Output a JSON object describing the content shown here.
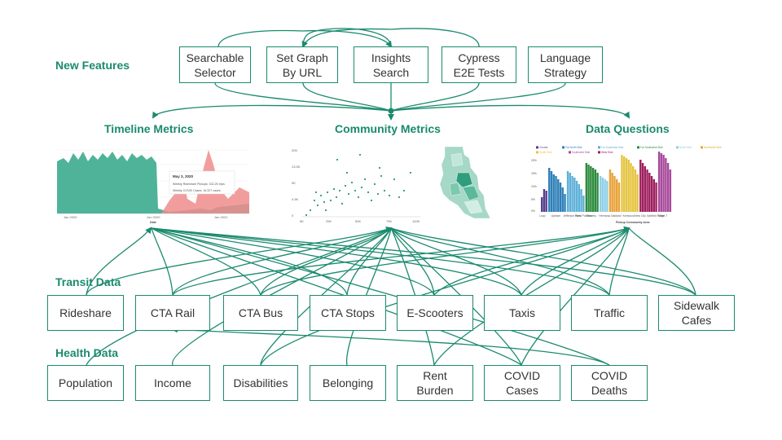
{
  "sections": {
    "new_features": "New Features",
    "transit_data": "Transit Data",
    "health_data": "Health Data"
  },
  "features": [
    "Searchable\nSelector",
    "Set Graph\nBy URL",
    "Insights\nSearch",
    "Cypress\nE2E Tests",
    "Language\nStrategy"
  ],
  "metrics": [
    "Timeline Metrics",
    "Community Metrics",
    "Data Questions"
  ],
  "transit": [
    "Rideshare",
    "CTA Rail",
    "CTA Bus",
    "CTA Stops",
    "E-Scooters",
    "Taxis",
    "Traffic",
    "Sidewalk\nCafes"
  ],
  "health": [
    "Population",
    "Income",
    "Disabilities",
    "Belonging",
    "Rent\nBurden",
    "COVID\nCases",
    "COVID\nDeaths"
  ],
  "thumbnails": {
    "timeline": {
      "tooltip_date": "May 3, 2020",
      "tooltip_line1": "Weekly Rideshare Pickups: 332.2K trips",
      "tooltip_line2": "Weekly COVID Cases: 15,327 cases",
      "x_ticks": [
        "Jan 2020",
        "Jun 2020",
        "Jan 2021"
      ],
      "x_title": "Date"
    },
    "community": {
      "x_ticks": [
        "5K",
        "25K",
        "50K",
        "75K",
        "100K"
      ],
      "y_ticks": [
        "20K",
        "13.5K",
        "9K",
        "4.5K",
        "0"
      ]
    },
    "questions": {
      "legend": [
        "Central",
        "Far North Side",
        "Far Southeast Side",
        "Far Southwest Side",
        "North Side",
        "Northwest Side",
        "South Side",
        "Southwest Side",
        "West Side"
      ],
      "x_ticks": [
        "Loop",
        "Uptown",
        "Jefferson Park",
        "West Pullman",
        "Beverly",
        "Hermosa",
        "Oakland",
        "Kenwood",
        "New City",
        "Garfield Ridge",
        "West T"
      ],
      "x_title": "Pickup Community Area",
      "y_ticks": [
        "20%",
        "15%",
        "10%",
        "5%",
        "0%"
      ]
    }
  },
  "colors": {
    "accent": "#1a8a6e",
    "timeline_fill": "#4fb39a",
    "covid_fill": "#f08c8c"
  }
}
